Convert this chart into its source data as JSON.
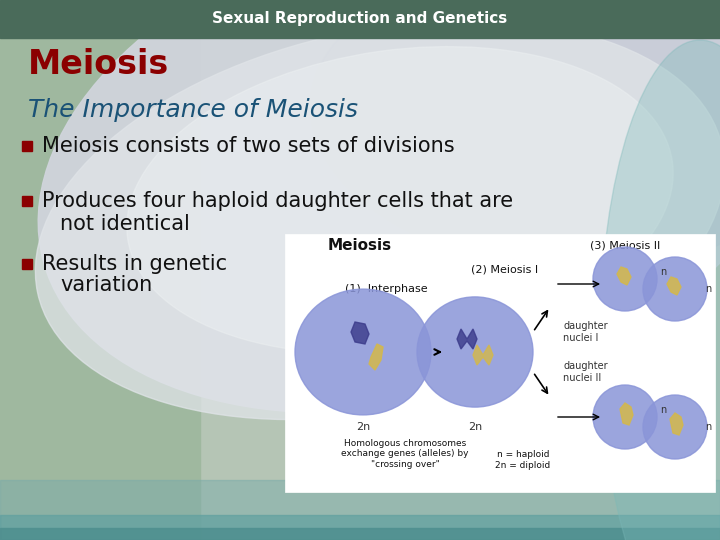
{
  "header_text": "Sexual Reproduction and Genetics",
  "header_color": "#ffffff",
  "header_bg_color": "#4a6b5a",
  "title_text": "Meiosis",
  "title_color": "#8b0000",
  "subtitle_text": "The Importance of Meiosis",
  "subtitle_color": "#1a5276",
  "bullet_color": "#8b0000",
  "bullet_text_color": "#111111",
  "bullets": [
    "Meiosis consists of two sets of divisions",
    "Produces four haploid daughter cells that are\n   not identical",
    "Results in genetic\n   variation"
  ],
  "fig_width": 7.2,
  "fig_height": 5.4,
  "dpi": 100
}
